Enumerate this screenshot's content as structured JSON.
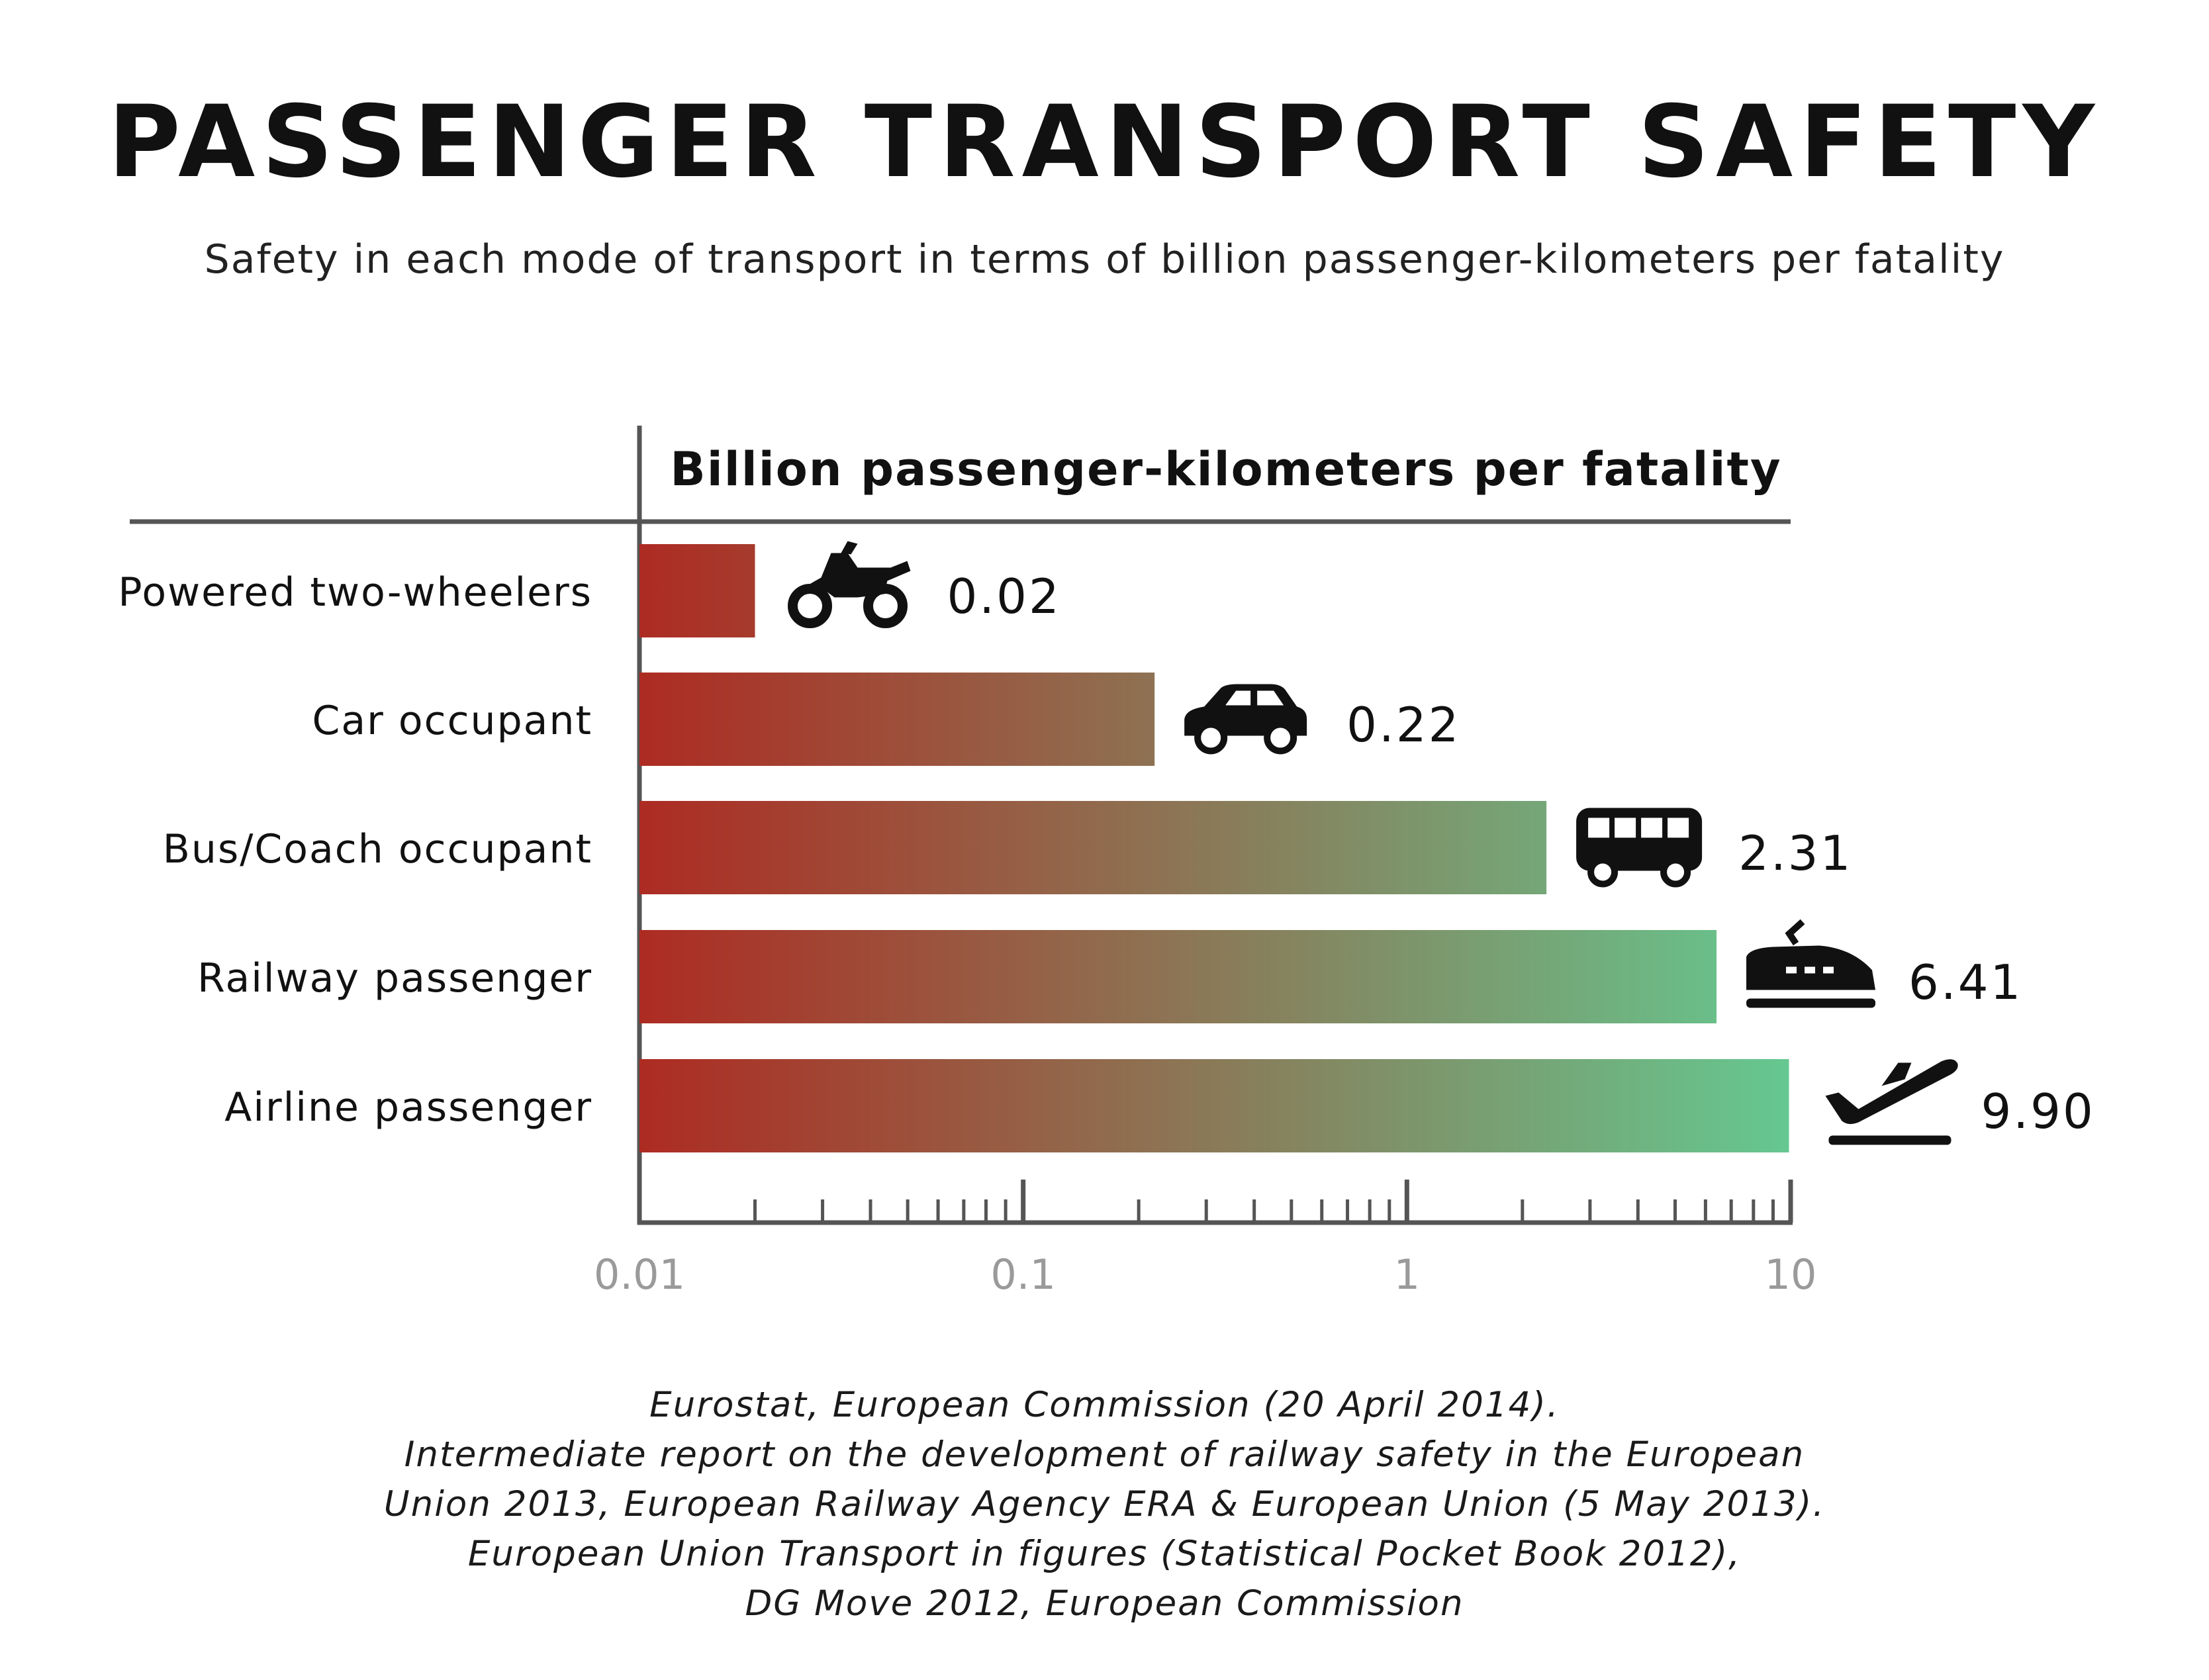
{
  "title": "PASSENGER TRANSPORT SAFETY",
  "subtitle": "Safety in each mode of transport in terms of billion passenger-kilometers per fatality",
  "chart_data": {
    "type": "bar",
    "orientation": "horizontal",
    "scale": "log",
    "header": "Billion passenger-kilometers per fatality",
    "categories": [
      "Powered two-wheelers",
      "Car occupant",
      "Bus/Coach occupant",
      "Railway passenger",
      "Airline passenger"
    ],
    "values": [
      0.02,
      0.22,
      2.31,
      6.41,
      9.9
    ],
    "value_labels": [
      "0.02",
      "0.22",
      "2.31",
      "6.41",
      "9.90"
    ],
    "icons": [
      "motorcycle-icon",
      "car-icon",
      "bus-icon",
      "train-icon",
      "airplane-icon"
    ],
    "xlim": [
      0.01,
      10
    ],
    "xticks": [
      0.01,
      0.1,
      1,
      10
    ],
    "xtick_labels": [
      "0.01",
      "0.1",
      "1",
      "10"
    ],
    "gradient": {
      "low": "#ad2b22",
      "mid": "#8a7a58",
      "high": "#65c890"
    },
    "axis_color": "#555555",
    "tick_label_color": "#9a9a9a"
  },
  "source_lines": [
    "Eurostat, European Commission (20 April 2014).",
    "Intermediate report on the development of railway safety in the European",
    "Union 2013, European Railway Agency ERA & European Union (5 May 2013).",
    "European Union Transport in figures (Statistical Pocket Book 2012),",
    "DG Move 2012, European Commission"
  ]
}
